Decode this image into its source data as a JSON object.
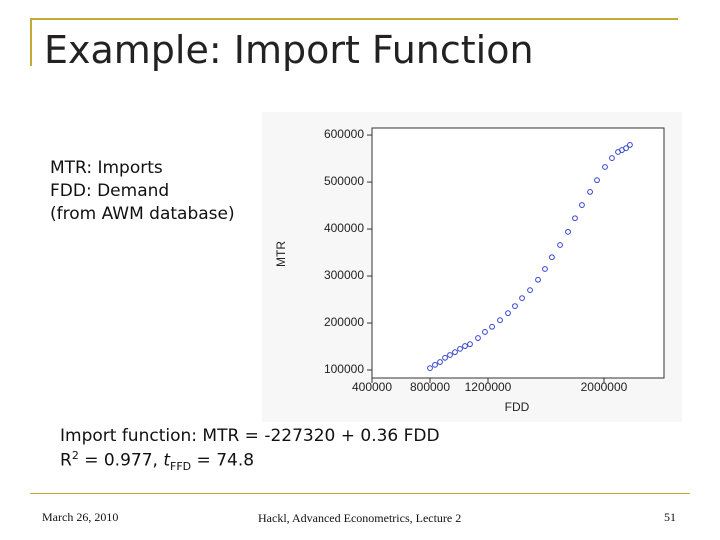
{
  "title": "Example: Import Function",
  "notes": [
    "MTR: Imports",
    "FDD: Demand",
    "(from AWM database)"
  ],
  "equation": "Import function:  MTR = -227320 + 0.36 FDD",
  "stats": {
    "r": "R",
    "r_sup": "2",
    "mid": " = 0.977, ",
    "t": "t",
    "t_sub": "FFD",
    "end": " = 74.8"
  },
  "chart_data": {
    "type": "scatter",
    "x_label": "FDD",
    "y_label": "MTR",
    "color": "#3344cc",
    "xlim": [
      400000,
      2414000
    ],
    "ylim": [
      83000,
      615000
    ],
    "xticks": [
      400000,
      800000,
      1200000,
      2000000
    ],
    "yticks": [
      100000,
      200000,
      300000,
      400000,
      500000,
      600000
    ],
    "x": [
      800000,
      834500,
      869000,
      903500,
      938000,
      972500,
      1007000,
      1041400,
      1076000,
      1131000,
      1179000,
      1228000,
      1283000,
      1338000,
      1386000,
      1435000,
      1490000,
      1545000,
      1593000,
      1641000,
      1697000,
      1752000,
      1800000,
      1848000,
      1904000,
      1952000,
      2007000,
      2055000,
      2097000,
      2124000,
      2152000,
      2179000
    ],
    "values": [
      104000,
      111000,
      117000,
      126000,
      132000,
      138000,
      145000,
      151000,
      155000,
      168000,
      181000,
      192000,
      206000,
      221000,
      236000,
      253000,
      270000,
      292000,
      315000,
      340000,
      366000,
      394000,
      423000,
      451000,
      479000,
      504000,
      532000,
      551000,
      564000,
      568000,
      572000,
      579000
    ]
  },
  "footer": {
    "date": "March 26, 2010",
    "center": "Hackl, Advanced Econometrics, Lecture 2",
    "page": "51"
  }
}
